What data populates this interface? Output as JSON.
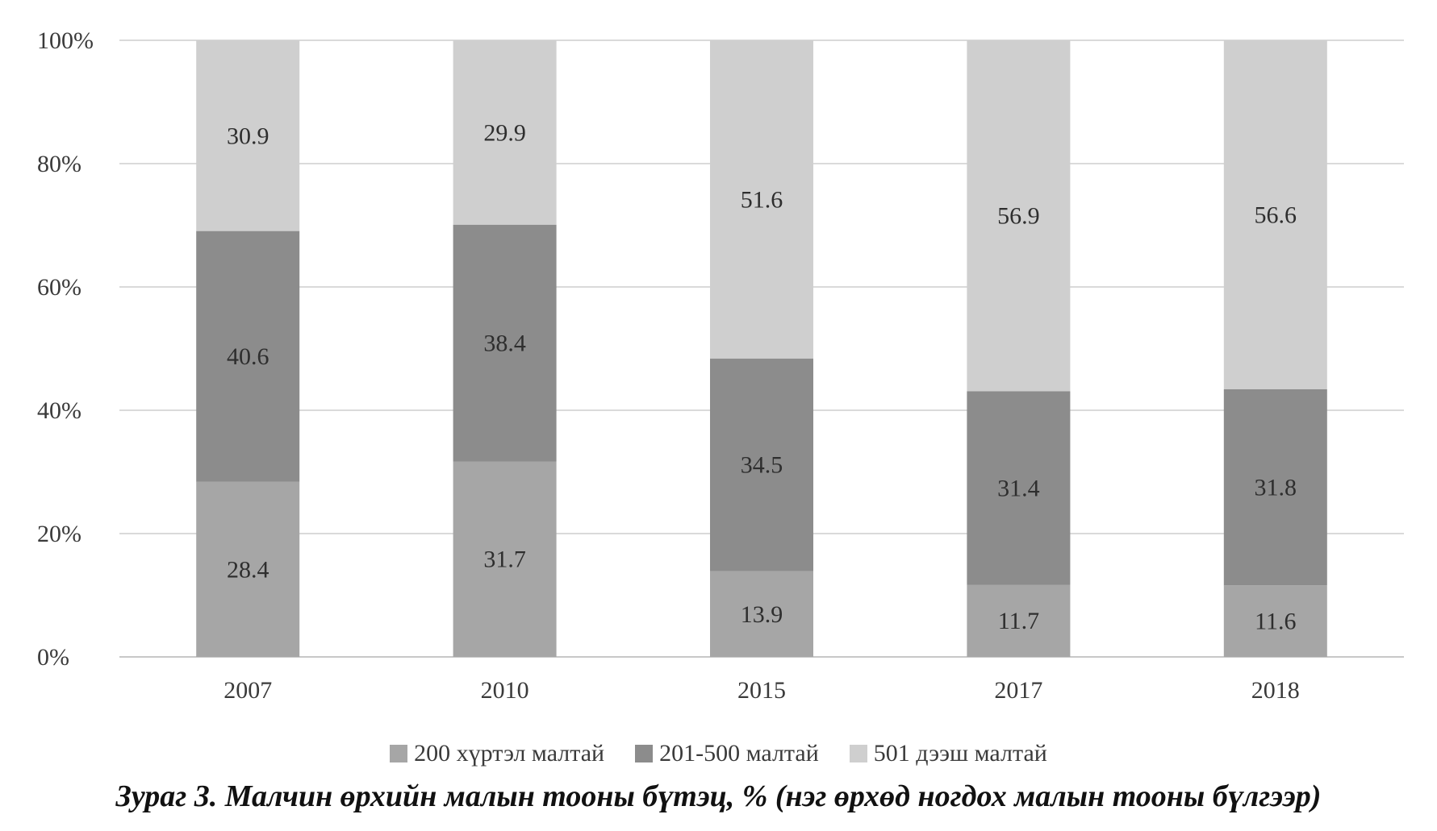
{
  "chart_data": {
    "type": "bar",
    "stacked": true,
    "percent": true,
    "categories": [
      "2007",
      "2010",
      "2015",
      "2017",
      "2018"
    ],
    "series": [
      {
        "name": "200 хүртэл малтай",
        "values": [
          28.4,
          31.7,
          13.9,
          11.7,
          11.6
        ],
        "color": "#a6a6a6"
      },
      {
        "name": "201-500 малтай",
        "values": [
          40.6,
          38.4,
          34.5,
          31.4,
          31.8
        ],
        "color": "#8c8c8c"
      },
      {
        "name": "501 дээш малтай",
        "values": [
          30.9,
          29.9,
          51.6,
          56.9,
          56.6
        ],
        "color": "#cfcfcf"
      }
    ],
    "y_ticks": [
      "0%",
      "20%",
      "40%",
      "60%",
      "80%",
      "100%"
    ],
    "ylim": [
      0,
      100
    ],
    "grid": true,
    "legend_position": "bottom"
  },
  "caption": "Зураг 3. Малчин өрхийн малын тооны бүтэц, % (нэг өрхөд ногдох малын тооны бүлгээр)"
}
